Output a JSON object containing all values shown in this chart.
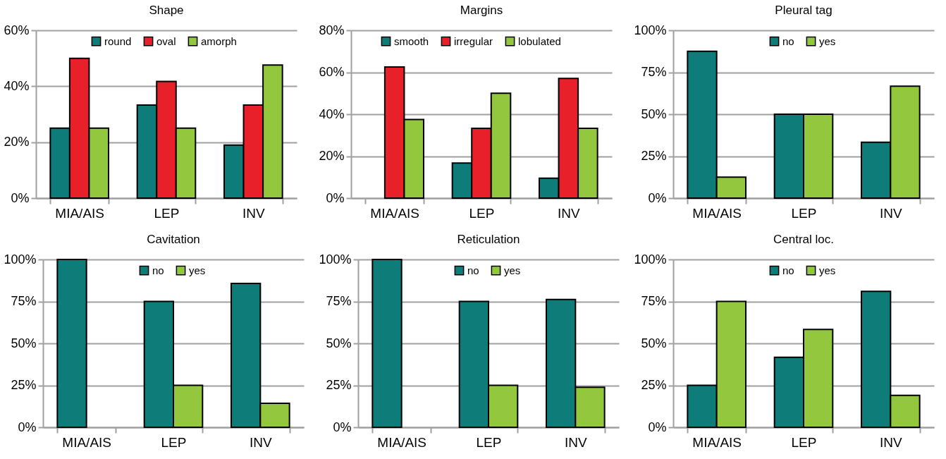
{
  "chart_data": [
    {
      "type": "bar",
      "title": "Shape",
      "categories": [
        "MIA/AIS",
        "LEP",
        "INV"
      ],
      "series": [
        {
          "name": "round",
          "color": "#0e7c78",
          "values": [
            25,
            33.3,
            19
          ]
        },
        {
          "name": "oval",
          "color": "#e8202a",
          "values": [
            50,
            41.7,
            33.3
          ]
        },
        {
          "name": "amorph",
          "color": "#93c83e",
          "values": [
            25,
            25,
            47.6
          ]
        }
      ],
      "ylim": [
        0,
        60
      ],
      "yticks": [
        {
          "value": 0,
          "label": "0%"
        },
        {
          "value": 20,
          "label": "20%"
        },
        {
          "value": 40,
          "label": "40%"
        },
        {
          "value": 60,
          "label": "60%"
        }
      ],
      "grid": "y",
      "legend": "top"
    },
    {
      "type": "bar",
      "title": "Margins",
      "categories": [
        "MIA/AIS",
        "LEP",
        "INV"
      ],
      "series": [
        {
          "name": "smooth",
          "color": "#0e7c78",
          "values": [
            0,
            16.7,
            9.5
          ]
        },
        {
          "name": "irregular",
          "color": "#e8202a",
          "values": [
            62.5,
            33.3,
            57.1
          ]
        },
        {
          "name": "lobulated",
          "color": "#93c83e",
          "values": [
            37.5,
            50,
            33.3
          ]
        }
      ],
      "ylim": [
        0,
        80
      ],
      "yticks": [
        {
          "value": 0,
          "label": "0%"
        },
        {
          "value": 20,
          "label": "20%"
        },
        {
          "value": 40,
          "label": "40%"
        },
        {
          "value": 60,
          "label": "60%"
        },
        {
          "value": 80,
          "label": "80%"
        }
      ],
      "grid": "y",
      "legend": "top"
    },
    {
      "type": "bar",
      "title": "Pleural tag",
      "categories": [
        "MIA/AIS",
        "LEP",
        "INV"
      ],
      "series": [
        {
          "name": "no",
          "color": "#0e7c78",
          "values": [
            87.5,
            50,
            33.3
          ]
        },
        {
          "name": "yes",
          "color": "#93c83e",
          "values": [
            12.5,
            50,
            66.7
          ]
        }
      ],
      "ylim": [
        0,
        100
      ],
      "yticks": [
        {
          "value": 0,
          "label": "0%"
        },
        {
          "value": 25,
          "label": "25%"
        },
        {
          "value": 50,
          "label": "50%"
        },
        {
          "value": 75,
          "label": "75%"
        },
        {
          "value": 100,
          "label": "100%"
        }
      ],
      "grid": "y",
      "legend": "top"
    },
    {
      "type": "bar",
      "title": "Cavitation",
      "categories": [
        "MIA/AIS",
        "LEP",
        "INV"
      ],
      "series": [
        {
          "name": "no",
          "color": "#0e7c78",
          "values": [
            100,
            75,
            85.7
          ]
        },
        {
          "name": "yes",
          "color": "#93c83e",
          "values": [
            0,
            25,
            14.3
          ]
        }
      ],
      "ylim": [
        0,
        100
      ],
      "yticks": [
        {
          "value": 0,
          "label": "0%"
        },
        {
          "value": 25,
          "label": "25%"
        },
        {
          "value": 50,
          "label": "50%"
        },
        {
          "value": 75,
          "label": "75%"
        },
        {
          "value": 100,
          "label": "100%"
        }
      ],
      "grid": "y",
      "legend": "top"
    },
    {
      "type": "bar",
      "title": "Reticulation",
      "categories": [
        "MIA/AIS",
        "LEP",
        "INV"
      ],
      "series": [
        {
          "name": "no",
          "color": "#0e7c78",
          "values": [
            100,
            75,
            76.2
          ]
        },
        {
          "name": "yes",
          "color": "#93c83e",
          "values": [
            0,
            25,
            23.8
          ]
        }
      ],
      "ylim": [
        0,
        100
      ],
      "yticks": [
        {
          "value": 0,
          "label": "0%"
        },
        {
          "value": 25,
          "label": "25%"
        },
        {
          "value": 50,
          "label": "50%"
        },
        {
          "value": 75,
          "label": "75%"
        },
        {
          "value": 100,
          "label": "100%"
        }
      ],
      "grid": "y",
      "legend": "top"
    },
    {
      "type": "bar",
      "title": "Central loc.",
      "categories": [
        "MIA/AIS",
        "LEP",
        "INV"
      ],
      "series": [
        {
          "name": "no",
          "color": "#0e7c78",
          "values": [
            25,
            41.7,
            81
          ]
        },
        {
          "name": "yes",
          "color": "#93c83e",
          "values": [
            75,
            58.3,
            19
          ]
        }
      ],
      "ylim": [
        0,
        100
      ],
      "yticks": [
        {
          "value": 0,
          "label": "0%"
        },
        {
          "value": 25,
          "label": "25%"
        },
        {
          "value": 50,
          "label": "50%"
        },
        {
          "value": 75,
          "label": "75%"
        },
        {
          "value": 100,
          "label": "100%"
        }
      ],
      "grid": "y",
      "legend": "top"
    }
  ]
}
